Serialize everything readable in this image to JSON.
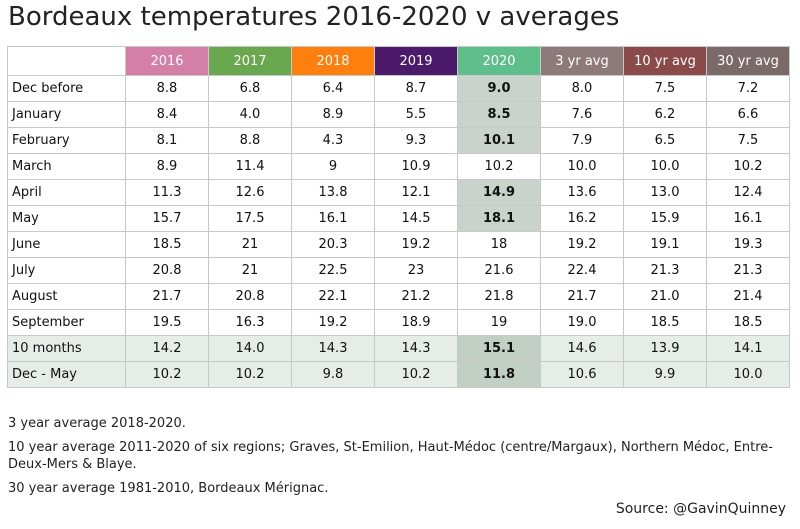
{
  "title": "Bordeaux temperatures 2016-2020 v averages",
  "colors": {
    "2016": "#d47fa6",
    "2017": "#6aa84f",
    "2018": "#ff7f0e",
    "2019": "#4b1a6b",
    "2020": "#5fbf8a",
    "3 yr avg": "#8e7a7a",
    "10 yr avg": "#8b4a4a",
    "30 yr avg": "#7a6a6a",
    "highlight": "#c9d3cb",
    "summary_row": "#e6ece7"
  },
  "chart_data": {
    "type": "table",
    "columns": [
      "2016",
      "2017",
      "2018",
      "2019",
      "2020",
      "3 yr avg",
      "10 yr avg",
      "30 yr avg"
    ],
    "rows": [
      {
        "label": "Dec before",
        "values": [
          "8.8",
          "6.8",
          "6.4",
          "8.7",
          "9.0",
          "8.0",
          "7.5",
          "7.2"
        ],
        "highlight_2020": true,
        "summary": false
      },
      {
        "label": "January",
        "values": [
          "8.4",
          "4.0",
          "8.9",
          "5.5",
          "8.5",
          "7.6",
          "6.2",
          "6.6"
        ],
        "highlight_2020": true,
        "summary": false
      },
      {
        "label": "February",
        "values": [
          "8.1",
          "8.8",
          "4.3",
          "9.3",
          "10.1",
          "7.9",
          "6.5",
          "7.5"
        ],
        "highlight_2020": true,
        "summary": false
      },
      {
        "label": "March",
        "values": [
          "8.9",
          "11.4",
          "9",
          "10.9",
          "10.2",
          "10.0",
          "10.0",
          "10.2"
        ],
        "highlight_2020": false,
        "summary": false
      },
      {
        "label": "April",
        "values": [
          "11.3",
          "12.6",
          "13.8",
          "12.1",
          "14.9",
          "13.6",
          "13.0",
          "12.4"
        ],
        "highlight_2020": true,
        "summary": false
      },
      {
        "label": "May",
        "values": [
          "15.7",
          "17.5",
          "16.1",
          "14.5",
          "18.1",
          "16.2",
          "15.9",
          "16.1"
        ],
        "highlight_2020": true,
        "summary": false
      },
      {
        "label": "June",
        "values": [
          "18.5",
          "21",
          "20.3",
          "19.2",
          "18",
          "19.2",
          "19.1",
          "19.3"
        ],
        "highlight_2020": false,
        "summary": false
      },
      {
        "label": "July",
        "values": [
          "20.8",
          "21",
          "22.5",
          "23",
          "21.6",
          "22.4",
          "21.3",
          "21.3"
        ],
        "highlight_2020": false,
        "summary": false
      },
      {
        "label": "August",
        "values": [
          "21.7",
          "20.8",
          "22.1",
          "21.2",
          "21.8",
          "21.7",
          "21.0",
          "21.4"
        ],
        "highlight_2020": false,
        "summary": false
      },
      {
        "label": "September",
        "values": [
          "19.5",
          "16.3",
          "19.2",
          "18.9",
          "19",
          "19.0",
          "18.5",
          "18.5"
        ],
        "highlight_2020": false,
        "summary": false
      },
      {
        "label": "10 months",
        "values": [
          "14.2",
          "14.0",
          "14.3",
          "14.3",
          "15.1",
          "14.6",
          "13.9",
          "14.1"
        ],
        "highlight_2020": true,
        "summary": true
      },
      {
        "label": "Dec - May",
        "values": [
          "10.2",
          "10.2",
          "9.8",
          "10.2",
          "11.8",
          "10.6",
          "9.9",
          "10.0"
        ],
        "highlight_2020": true,
        "summary": true
      }
    ]
  },
  "notes": [
    "3 year average 2018-2020.",
    "10 year average 2011-2020 of six regions; Graves, St-Emilion, Haut-Médoc (centre/Margaux), Northern Médoc, Entre-Deux-Mers & Blaye.",
    "30 year average 1981-2010, Bordeaux Mérignac."
  ],
  "source": "Source: @GavinQuinney"
}
